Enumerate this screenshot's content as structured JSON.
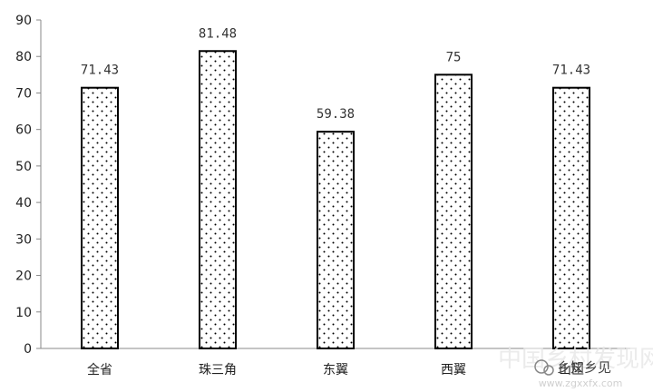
{
  "chart_data": {
    "type": "bar",
    "title": "",
    "xlabel": "",
    "ylabel": "",
    "categories": [
      "全省",
      "珠三角",
      "东翼",
      "西翼",
      "山区"
    ],
    "values": [
      71.43,
      81.48,
      59.38,
      75,
      71.43
    ],
    "value_labels": [
      "71.43",
      "81.48",
      "59.38",
      "75",
      "71.43"
    ],
    "ylim": [
      0,
      90
    ],
    "yticks": [
      0,
      10,
      20,
      30,
      40,
      50,
      60,
      70,
      80,
      90
    ],
    "grid": false,
    "legend": "none",
    "bar_fill": "dotted",
    "bar_color": "#000000"
  },
  "watermark": {
    "text": "乡知乡见",
    "site": "www.zgxxfx.com",
    "site_cn": "中国乡村发现网"
  }
}
